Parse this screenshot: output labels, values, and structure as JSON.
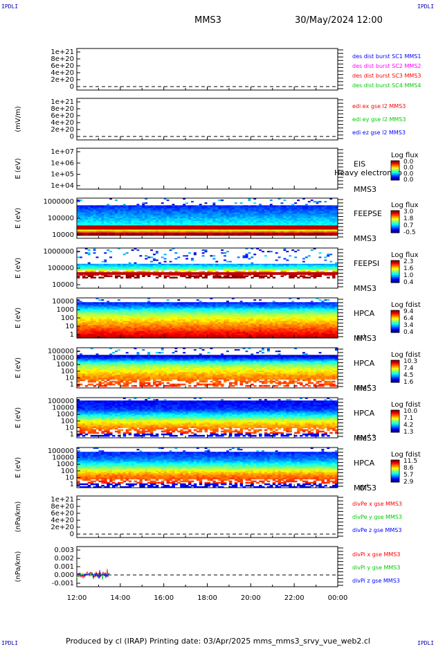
{
  "corner_label": "IPDLI",
  "header": {
    "spacecraft": "MMS3",
    "date": "30/May/2024 12:00"
  },
  "footer": "Produced by cl (IRAP)    Printing date: 03/Apr/2025    mms_mms3_srvy_vue_web2.cl",
  "x_axis": {
    "tick_labels": [
      "12:00",
      "14:00",
      "16:00",
      "18:00",
      "20:00",
      "22:00",
      "00:00"
    ]
  },
  "chart_data": [
    {
      "type": "line",
      "ylabel": "",
      "y_tick_labels": [
        "1e+21",
        "8e+20",
        "6e+20",
        "4e+20",
        "2e+20",
        "0"
      ],
      "series": [
        {
          "name": "des dist burst SC1 MMS1",
          "color": "#0000ff"
        },
        {
          "name": "des dist burst SC2 MMS2",
          "color": "#ff00ff"
        },
        {
          "name": "des dist burst SC3 MMS3",
          "color": "#ff0000"
        },
        {
          "name": "des dist burst SC4 MMS4",
          "color": "#00cc00"
        }
      ],
      "zero_line": "dashed"
    },
    {
      "type": "line",
      "ylabel": "(mV/m)",
      "y_tick_labels": [
        "1e+21",
        "8e+20",
        "6e+20",
        "4e+20",
        "2e+20",
        "0"
      ],
      "series": [
        {
          "name": "edi ex gse l2 MMS3",
          "color": "#ff0000"
        },
        {
          "name": "edi ey gse l2 MMS3",
          "color": "#00cc00"
        },
        {
          "name": "edi ez gse l2 MMS3",
          "color": "#0000ff"
        }
      ],
      "zero_line": "dashed"
    },
    {
      "type": "heatmap",
      "ylabel": "E (eV)",
      "y_tick_labels": [
        "1e+07",
        "1e+06",
        "1e+05",
        "1e+04"
      ],
      "instrument": [
        "EIS",
        "MMS3"
      ],
      "overlay_text": "Heavy electron to",
      "colorbar": {
        "title": "Log flux",
        "tick_labels": [
          "0.0",
          "0.0",
          "0.0",
          "0.0"
        ]
      }
    },
    {
      "type": "heatmap",
      "ylabel": "E (eV)",
      "y_tick_labels": [
        "1000000",
        "100000",
        "10000"
      ],
      "instrument": [
        "FEEPSE",
        "MMS3"
      ],
      "colorbar": {
        "title": "Log flux",
        "tick_labels": [
          "3.0",
          "1.8",
          "0.7",
          "-0.5"
        ]
      }
    },
    {
      "type": "heatmap",
      "ylabel": "E (eV)",
      "y_tick_labels": [
        "1000000",
        "100000",
        "10000"
      ],
      "instrument": [
        "FEEPSI",
        "MMS3"
      ],
      "colorbar": {
        "title": "Log flux",
        "tick_labels": [
          "2.3",
          "1.6",
          "1.0",
          "0.4"
        ]
      }
    },
    {
      "type": "heatmap",
      "ylabel": "E (eV)",
      "y_tick_labels": [
        "10000",
        "1000",
        "100",
        "10",
        "1"
      ],
      "instrument": [
        "HPCA",
        "MMS3"
      ],
      "species": {
        "base": "H",
        "sup": "+"
      },
      "colorbar": {
        "title": "Log fdist",
        "tick_labels": [
          "9.4",
          "6.4",
          "3.4",
          "0.4"
        ]
      }
    },
    {
      "type": "heatmap",
      "ylabel": "E (eV)",
      "y_tick_labels": [
        "100000",
        "10000",
        "1000",
        "100",
        "10",
        "1"
      ],
      "instrument": [
        "HPCA",
        "MMS3"
      ],
      "species": {
        "base": "He",
        "sup": "+"
      },
      "colorbar": {
        "title": "Log fdist",
        "tick_labels": [
          "10.3",
          "7.4",
          "4.5",
          "1.6"
        ]
      }
    },
    {
      "type": "heatmap",
      "ylabel": "E (eV)",
      "y_tick_labels": [
        "100000",
        "10000",
        "1000",
        "100",
        "10",
        "1"
      ],
      "instrument": [
        "HPCA",
        "MMS3"
      ],
      "species": {
        "base": "He",
        "sup": "++"
      },
      "colorbar": {
        "title": "Log fdist",
        "tick_labels": [
          "10.0",
          "7.1",
          "4.2",
          "1.3"
        ]
      }
    },
    {
      "type": "heatmap",
      "ylabel": "E (eV)",
      "y_tick_labels": [
        "100000",
        "10000",
        "1000",
        "100",
        "10",
        "1"
      ],
      "instrument": [
        "HPCA",
        "MMS3"
      ],
      "species": {
        "base": "O",
        "sup": "+"
      },
      "colorbar": {
        "title": "Log fdist",
        "tick_labels": [
          "11.5",
          "8.6",
          "5.7",
          "2.9"
        ]
      }
    },
    {
      "type": "line",
      "ylabel": "(nPa/km)",
      "y_tick_labels": [
        "1e+21",
        "8e+20",
        "6e+20",
        "4e+20",
        "2e+20",
        "0"
      ],
      "series": [
        {
          "name": "divPe x gse MMS3",
          "color": "#ff0000"
        },
        {
          "name": "divPe y gse MMS3",
          "color": "#00cc00"
        },
        {
          "name": "divPe z gse MMS3",
          "color": "#0000ff"
        }
      ],
      "zero_line": "dashed"
    },
    {
      "type": "line",
      "ylabel": "(nPa/km)",
      "y_tick_labels": [
        "0.003",
        "0.002",
        "0.001",
        "0.000",
        "-0.001"
      ],
      "series": [
        {
          "name": "divPi x gse MMS3",
          "color": "#ff0000"
        },
        {
          "name": "divPi y gse MMS3",
          "color": "#00cc00"
        },
        {
          "name": "divPi z gse MMS3",
          "color": "#0000ff"
        }
      ],
      "zero_line": "dashed"
    }
  ]
}
